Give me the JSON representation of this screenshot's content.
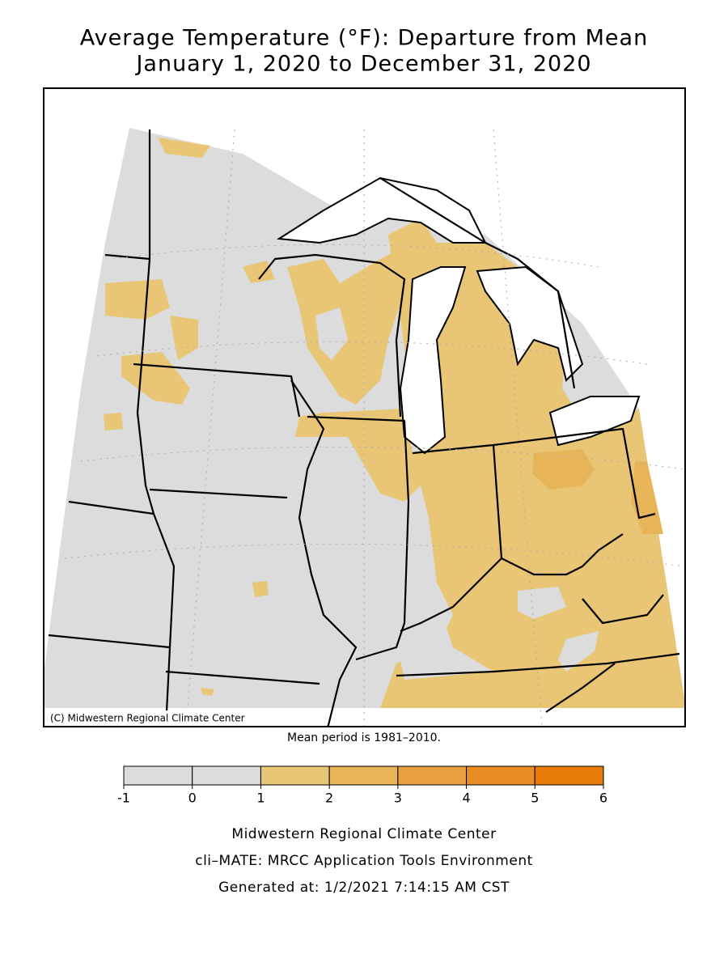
{
  "title": [
    "Average Temperature (°F): Departure from Mean",
    "January 1, 2020 to December 31, 2020"
  ],
  "map": {
    "credit": "(C) Midwestern Regional Climate Center",
    "note": "Mean period is 1981–2010."
  },
  "legend": {
    "ticks": [
      -1,
      0,
      1,
      2,
      3,
      4,
      5,
      6
    ],
    "colors": [
      "#dcdcdc",
      "#dcdcdc",
      "#e8c676",
      "#e8b458",
      "#e8a03e",
      "#e88c24",
      "#e87a08"
    ]
  },
  "footer": [
    "Midwestern Regional Climate Center",
    "cli–MATE: MRCC Application Tools Environment",
    "Generated at: 1/2/2021 7:14:15 AM CST"
  ]
}
